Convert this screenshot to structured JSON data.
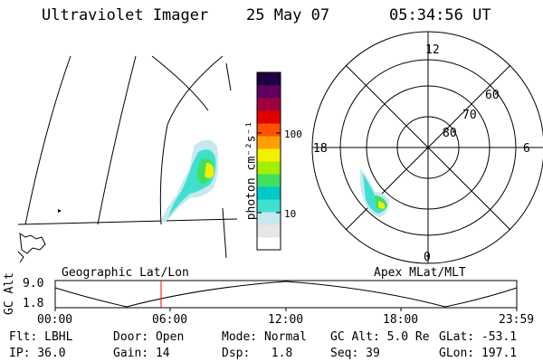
{
  "header": {
    "instrument": "Ultraviolet Imager",
    "date": "25 May 07",
    "time": "05:34:56 UT"
  },
  "colorbar": {
    "unit_label": "photon cm⁻²s⁻¹",
    "tick_100": "100",
    "tick_10": "10",
    "scale": "log",
    "colors": [
      "#ffffff",
      "#e6e6e6",
      "#c8e8f0",
      "#40e0d0",
      "#00c8c8",
      "#40e060",
      "#a0f000",
      "#f0f000",
      "#ffa000",
      "#ff5000",
      "#e00000",
      "#a00040",
      "#600060",
      "#200040"
    ]
  },
  "geo_panel": {
    "label": "Geographic Lat/Lon"
  },
  "polar_panel": {
    "label": "Apex MLat/MLT",
    "mlt_top": "12",
    "mlt_bottom": "0",
    "mlt_left": "18",
    "mlt_right": "6",
    "lat_60": "60",
    "lat_70": "70",
    "lat_80": "80"
  },
  "altitude_strip": {
    "ylabel": "GC Alt",
    "y_top": "9.0",
    "y_bottom": "1.8",
    "x_ticks": [
      "00:00",
      "06:00",
      "12:00",
      "18:00",
      "23:59"
    ],
    "current_time_color": "#ff0000"
  },
  "status": {
    "row1": {
      "filter": "Flt: LBHL",
      "door": "Door: Open",
      "mode": "Mode: Normal",
      "gc_alt": "GC Alt: 5.0 Re",
      "glat": "GLat: -53.1"
    },
    "row2": {
      "ip": "IP: 36.0",
      "gain": "Gain: 14",
      "dsp": "Dsp:   1.8",
      "seq": "Seq: 39",
      "glon": "GLon: 197.1"
    }
  }
}
